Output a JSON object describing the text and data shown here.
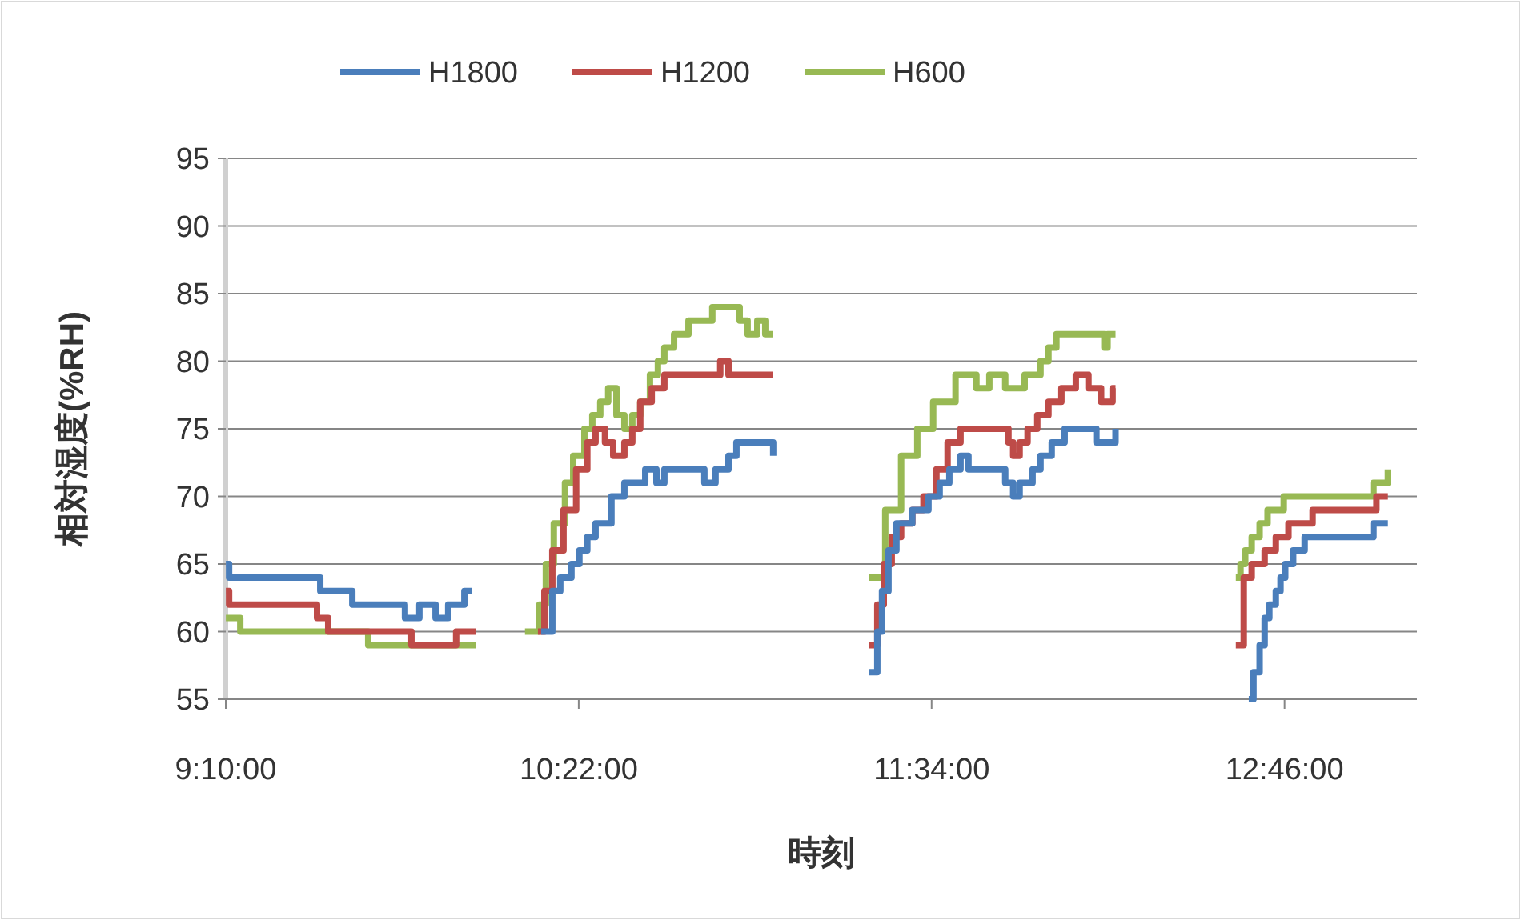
{
  "chart_data": {
    "type": "step",
    "xlabel": "時刻",
    "ylabel": "相対湿度(%RH)",
    "xlim": [
      9.1667,
      13.2167
    ],
    "xticks": [
      {
        "value": 9.1667,
        "label": "9:10:00"
      },
      {
        "value": 10.3667,
        "label": "10:22:00"
      },
      {
        "value": 11.5667,
        "label": "11:34:00"
      },
      {
        "value": 12.7667,
        "label": "12:46:00"
      }
    ],
    "ylim": [
      55,
      95
    ],
    "yticks": [
      55,
      60,
      65,
      70,
      75,
      80,
      85,
      90,
      95
    ],
    "grid": "y",
    "legend": "top",
    "line_style": "solid",
    "series": [
      {
        "name": "H1800",
        "color": "#4a7ebb",
        "x": [
          9.167,
          9.178,
          9.488,
          9.597,
          9.776,
          9.825,
          9.88,
          9.923,
          9.978,
          10.005,
          10.1,
          10.239,
          10.261,
          10.277,
          10.304,
          10.342,
          10.369,
          10.396,
          10.424,
          10.478,
          10.522,
          10.549,
          10.593,
          10.631,
          10.658,
          10.778,
          10.794,
          10.832,
          10.876,
          10.903,
          11.012,
          11.028,
          11.2,
          11.354,
          11.382,
          11.398,
          11.42,
          11.447,
          11.501,
          11.556,
          11.594,
          11.627,
          11.665,
          11.692,
          11.801,
          11.817,
          11.844,
          11.866,
          11.91,
          11.937,
          11.975,
          12.019,
          12.1,
          12.127,
          12.182,
          12.192,
          12.4,
          12.645,
          12.661,
          12.682,
          12.699,
          12.715,
          12.737,
          12.753,
          12.769,
          12.796,
          12.835,
          13.052,
          13.069,
          13.118
        ],
        "values": [
          65,
          64,
          63,
          62,
          61,
          62,
          61,
          62,
          63,
          63,
          null,
          60,
          60,
          63,
          64,
          65,
          66,
          67,
          68,
          70,
          71,
          71,
          72,
          71,
          72,
          72,
          71,
          72,
          73,
          74,
          74,
          73,
          null,
          57,
          60,
          63,
          66,
          68,
          69,
          70,
          71,
          72,
          73,
          72,
          72,
          71,
          70,
          71,
          72,
          73,
          74,
          75,
          75,
          74,
          74,
          75,
          null,
          55,
          57,
          59,
          61,
          62,
          63,
          64,
          65,
          66,
          67,
          67,
          68,
          68
        ]
      },
      {
        "name": "H1200",
        "color": "#be4b48",
        "x": [
          9.167,
          9.178,
          9.477,
          9.515,
          9.798,
          9.95,
          10.016,
          10.1,
          10.228,
          10.25,
          10.277,
          10.315,
          10.358,
          10.396,
          10.424,
          10.456,
          10.484,
          10.522,
          10.549,
          10.576,
          10.615,
          10.658,
          10.74,
          10.848,
          10.876,
          11.028,
          11.2,
          11.354,
          11.382,
          11.404,
          11.431,
          11.463,
          11.501,
          11.539,
          11.583,
          11.621,
          11.665,
          11.801,
          11.828,
          11.844,
          11.866,
          11.893,
          11.926,
          11.964,
          12.008,
          12.057,
          12.1,
          12.143,
          12.182,
          12.192,
          12.4,
          12.601,
          12.628,
          12.655,
          12.699,
          12.737,
          12.78,
          12.862,
          13.052,
          13.079,
          13.118
        ],
        "values": [
          63,
          62,
          61,
          60,
          59,
          60,
          60,
          null,
          60,
          63,
          66,
          69,
          72,
          74,
          75,
          74,
          73,
          74,
          75,
          77,
          78,
          79,
          79,
          80,
          79,
          79,
          null,
          59,
          62,
          65,
          67,
          68,
          69,
          70,
          72,
          74,
          75,
          75,
          74,
          73,
          74,
          75,
          76,
          77,
          78,
          79,
          78,
          77,
          78,
          78,
          null,
          59,
          64,
          65,
          66,
          67,
          68,
          69,
          69,
          70,
          70
        ]
      },
      {
        "name": "H600",
        "color": "#98b954",
        "x": [
          9.167,
          9.216,
          9.651,
          10.016,
          10.1,
          10.184,
          10.212,
          10.233,
          10.255,
          10.282,
          10.32,
          10.348,
          10.386,
          10.413,
          10.44,
          10.467,
          10.495,
          10.522,
          10.549,
          10.576,
          10.609,
          10.636,
          10.658,
          10.691,
          10.74,
          10.821,
          10.886,
          10.914,
          10.941,
          10.974,
          11.001,
          11.028,
          11.2,
          11.354,
          11.409,
          11.463,
          11.518,
          11.572,
          11.648,
          11.719,
          11.73,
          11.763,
          11.817,
          11.883,
          11.937,
          11.964,
          11.991,
          12.019,
          12.154,
          12.165,
          12.182,
          12.192,
          12.4,
          12.601,
          12.617,
          12.633,
          12.655,
          12.682,
          12.709,
          12.764,
          13.052,
          13.069,
          13.118
        ],
        "values": [
          61,
          60,
          59,
          59,
          null,
          60,
          60,
          62,
          65,
          68,
          71,
          73,
          75,
          76,
          77,
          78,
          76,
          75,
          76,
          77,
          79,
          80,
          81,
          82,
          83,
          84,
          84,
          83,
          82,
          83,
          82,
          82,
          null,
          64,
          69,
          73,
          75,
          77,
          79,
          78,
          78,
          79,
          78,
          79,
          80,
          81,
          82,
          82,
          81,
          82,
          82,
          82,
          null,
          64,
          65,
          66,
          67,
          68,
          69,
          70,
          70,
          71,
          72
        ]
      }
    ]
  }
}
